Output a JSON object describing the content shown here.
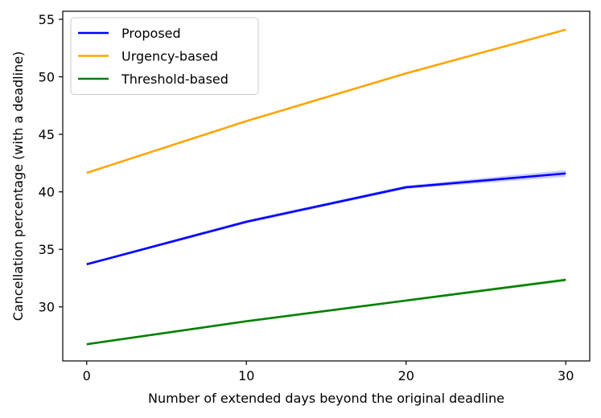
{
  "chart_data": {
    "type": "line",
    "xlabel": "Number of extended days beyond the original deadline",
    "ylabel": "Cancellation percentage (with a deadline)",
    "xlim": [
      -1.5,
      31.5
    ],
    "ylim": [
      25.3,
      55.7
    ],
    "xticks": [
      0,
      10,
      20,
      30
    ],
    "xtick_labels": [
      "0",
      "10",
      "20",
      "30"
    ],
    "yticks": [
      30,
      35,
      40,
      45,
      50,
      55
    ],
    "ytick_labels": [
      "30",
      "35",
      "40",
      "45",
      "50",
      "55"
    ],
    "grid": false,
    "legend_position": "top-left",
    "x": [
      0,
      10,
      20,
      30
    ],
    "series": [
      {
        "name": "Proposed",
        "color": "#0000ff",
        "values": [
          33.7,
          37.4,
          40.4,
          41.6
        ],
        "band": [
          0.1,
          0.15,
          0.15,
          0.3
        ]
      },
      {
        "name": "Urgency-based",
        "color": "#ffa500",
        "values": [
          41.65,
          46.15,
          50.3,
          54.1
        ],
        "band": [
          0.05,
          0.05,
          0.05,
          0.05
        ]
      },
      {
        "name": "Threshold-based",
        "color": "#008000",
        "values": [
          26.75,
          28.75,
          30.55,
          32.35
        ],
        "band": [
          0.08,
          0.1,
          0.1,
          0.15
        ]
      }
    ]
  }
}
